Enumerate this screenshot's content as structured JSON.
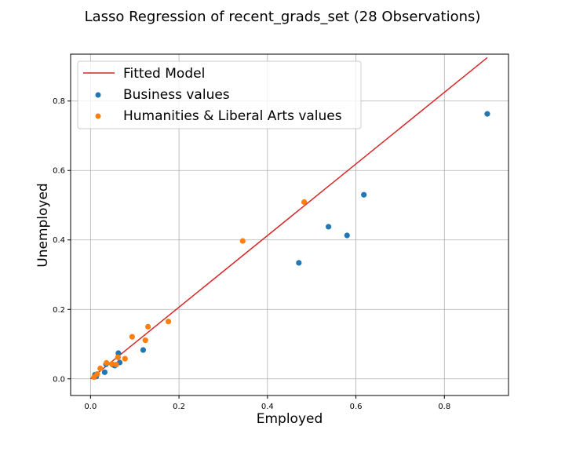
{
  "chart_data": {
    "type": "scatter",
    "title": "Lasso Regression of recent_grads_set (28 Observations)",
    "xlabel": "Employed",
    "ylabel": "Unemployed",
    "xlim": [
      -0.045,
      0.945
    ],
    "ylim": [
      -0.048,
      0.935
    ],
    "xticks": [
      0.0,
      0.2,
      0.4,
      0.6,
      0.8
    ],
    "yticks": [
      0.0,
      0.2,
      0.4,
      0.6,
      0.8
    ],
    "xtick_labels": [
      "0.0",
      "0.2",
      "0.4",
      "0.6",
      "0.8"
    ],
    "ytick_labels": [
      "0.0",
      "0.2",
      "0.4",
      "0.6",
      "0.8"
    ],
    "grid": true,
    "legend_position": "upper-left",
    "line": {
      "name": "Fitted Model",
      "color": "#d62728",
      "x": [
        0.0,
        0.897
      ],
      "y": [
        0.0,
        0.925
      ]
    },
    "series": [
      {
        "name": "Business values",
        "color": "#1f77b4",
        "points": [
          [
            0.897,
            0.763
          ],
          [
            0.618,
            0.53
          ],
          [
            0.538,
            0.438
          ],
          [
            0.58,
            0.413
          ],
          [
            0.471,
            0.334
          ],
          [
            0.119,
            0.083
          ],
          [
            0.063,
            0.074
          ],
          [
            0.066,
            0.047
          ],
          [
            0.055,
            0.038
          ],
          [
            0.035,
            0.042
          ],
          [
            0.032,
            0.019
          ],
          [
            0.01,
            0.012
          ],
          [
            0.013,
            0.007
          ],
          [
            0.05,
            0.041
          ]
        ]
      },
      {
        "name": "Humanities & Liberal Arts values",
        "color": "#ff7f0e",
        "points": [
          [
            0.483,
            0.509
          ],
          [
            0.344,
            0.397
          ],
          [
            0.176,
            0.165
          ],
          [
            0.13,
            0.15
          ],
          [
            0.124,
            0.111
          ],
          [
            0.094,
            0.121
          ],
          [
            0.078,
            0.058
          ],
          [
            0.062,
            0.062
          ],
          [
            0.058,
            0.041
          ],
          [
            0.048,
            0.043
          ],
          [
            0.036,
            0.046
          ],
          [
            0.022,
            0.03
          ],
          [
            0.015,
            0.014
          ],
          [
            0.008,
            0.005
          ]
        ]
      }
    ]
  }
}
